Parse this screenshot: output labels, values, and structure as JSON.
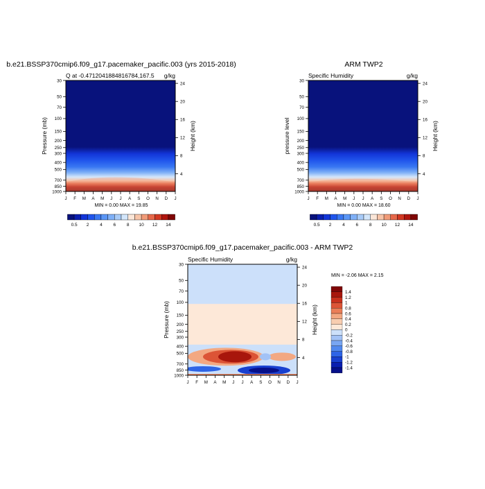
{
  "colors": {
    "abs_palette": [
      "#08127c",
      "#0a1fb0",
      "#1235d8",
      "#2055ec",
      "#3a78f2",
      "#5a96f6",
      "#7fb0f7",
      "#a8cbf8",
      "#d3e6fb",
      "#fbe6d8",
      "#f7c4a8",
      "#f19b78",
      "#e6684a",
      "#d23822",
      "#b0150e",
      "#800606"
    ],
    "diff_palette": [
      "#06108a",
      "#0a1fb0",
      "#1840d0",
      "#2e64e6",
      "#5088ee",
      "#78a6f2",
      "#a2c2f6",
      "#cce0fa",
      "#fde8d8",
      "#f8cdb0",
      "#f3a882",
      "#ea7e58",
      "#dc5436",
      "#c8301c",
      "#a8160c",
      "#800606"
    ]
  },
  "panels": [
    {
      "id": "model",
      "title": "b.e21.BSSP370cmip6.f09_g17.pacemaker_pacific.003 (yrs 2015-2018)",
      "left_label": "Q at -0.4712041884816784,167.5",
      "right_label": "g/kg",
      "ylabel": "Pressure (mb)",
      "y2label": "Height (km)",
      "minmax": "MIN =   0.00 MAX =  19.85"
    },
    {
      "id": "obs",
      "title": "ARM TWP2",
      "left_label": "Specific Humidity",
      "right_label": "g/kg",
      "ylabel": "pressure level",
      "y2label": "Height (km)",
      "minmax": "MIN =   0.00 MAX =  18.60"
    },
    {
      "id": "diff",
      "title": "b.e21.BSSP370cmip6.f09_g17.pacemaker_pacific.003 - ARM TWP2",
      "left_label": "Specific Humidity",
      "right_label": "g/kg",
      "ylabel": "Pressure (mb)",
      "y2label": "Height (km)",
      "minmax": "MIN =  -2.06 MAX =   2.15"
    }
  ],
  "chart_data": [
    {
      "type": "heatmap",
      "title": "b.e21.BSSP370cmip6.f09_g17.pacemaker_pacific.003 (yrs 2015-2018)",
      "subtitle_left": "Q at -0.4712041884816784,167.5",
      "subtitle_right": "g/kg",
      "ylabel": "Pressure (mb)",
      "y2label": "Height (km)",
      "x_ticks": [
        "J",
        "F",
        "M",
        "A",
        "M",
        "J",
        "J",
        "A",
        "S",
        "O",
        "N",
        "D",
        "J"
      ],
      "y_ticks": [
        30,
        50,
        70,
        100,
        150,
        200,
        250,
        300,
        400,
        500,
        700,
        850,
        1000
      ],
      "y2_ticks": [
        24,
        20,
        16,
        12,
        8,
        4
      ],
      "y_scale": "log",
      "min": 0.0,
      "max": 19.85,
      "colorbar_levels": [
        0.5,
        1,
        1.5,
        2,
        3,
        4,
        5,
        6,
        7,
        8,
        9,
        10,
        11,
        12,
        14
      ],
      "colorbar_labels": [
        "0.5",
        "2",
        "4",
        "6",
        "8",
        "10",
        "12",
        "14"
      ]
    },
    {
      "type": "heatmap",
      "title": "ARM TWP2",
      "subtitle_left": "Specific Humidity",
      "subtitle_right": "g/kg",
      "ylabel": "pressure level",
      "y2label": "Height (km)",
      "x_ticks": [
        "J",
        "F",
        "M",
        "A",
        "M",
        "J",
        "J",
        "A",
        "S",
        "O",
        "N",
        "D",
        "J"
      ],
      "y_ticks": [
        30,
        50,
        70,
        100,
        150,
        200,
        250,
        300,
        400,
        500,
        700,
        850,
        1000
      ],
      "y2_ticks": [
        24,
        20,
        16,
        12,
        8,
        4
      ],
      "y_scale": "log",
      "min": 0.0,
      "max": 18.6,
      "colorbar_levels": [
        0.5,
        1,
        1.5,
        2,
        3,
        4,
        5,
        6,
        7,
        8,
        9,
        10,
        11,
        12,
        14
      ],
      "colorbar_labels": [
        "0.5",
        "2",
        "4",
        "6",
        "8",
        "10",
        "12",
        "14"
      ]
    },
    {
      "type": "heatmap",
      "title": "b.e21.BSSP370cmip6.f09_g17.pacemaker_pacific.003 - ARM TWP2",
      "subtitle_left": "Specific Humidity",
      "subtitle_right": "g/kg",
      "ylabel": "Pressure (mb)",
      "y2label": "Height (km)",
      "x_ticks": [
        "J",
        "F",
        "M",
        "A",
        "M",
        "J",
        "J",
        "A",
        "S",
        "O",
        "N",
        "D",
        "J"
      ],
      "y_ticks": [
        30,
        50,
        70,
        100,
        150,
        200,
        250,
        300,
        400,
        500,
        700,
        850,
        1000
      ],
      "y2_ticks": [
        24,
        20,
        16,
        12,
        8,
        4
      ],
      "y_scale": "log",
      "min": -2.06,
      "max": 2.15,
      "colorbar_levels": [
        1.4,
        1.2,
        1,
        0.8,
        0.6,
        0.4,
        0.2,
        0,
        -0.2,
        -0.4,
        -0.6,
        -0.8,
        -1,
        -1.2,
        -1.4
      ],
      "colorbar_labels": [
        "1.4",
        "1.2",
        "1",
        "0.8",
        "0.6",
        "0.4",
        "0.2",
        "0",
        "-0.2",
        "-0.4",
        "-0.6",
        "-0.8",
        "-1",
        "-1.2",
        "-1.4"
      ]
    }
  ]
}
